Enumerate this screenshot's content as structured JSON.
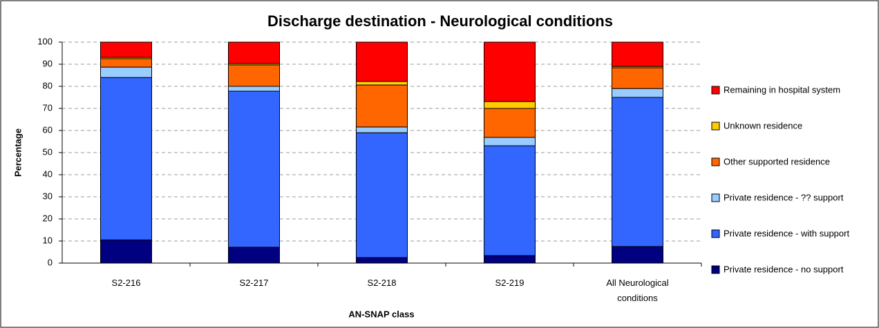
{
  "chart_data": {
    "type": "stacked-bar",
    "title": "Discharge destination - Neurological conditions",
    "x_label": "AN-SNAP class",
    "y_label": "Percentage",
    "categories": [
      "S2-216",
      "S2-217",
      "S2-218",
      "S2-219",
      "All Neurological conditions"
    ],
    "series": [
      {
        "name": "Private residence - no support",
        "color": "#000080",
        "values": [
          10.5,
          7.2,
          2.5,
          3.4,
          7.5
        ]
      },
      {
        "name": "Private residence - with support",
        "color": "#3366ff",
        "values": [
          73.5,
          70.6,
          56.5,
          49.7,
          67.5
        ]
      },
      {
        "name": "Private residence - ?? support",
        "color": "#99ccff",
        "values": [
          4.7,
          2.2,
          2.6,
          3.8,
          4.0
        ]
      },
      {
        "name": "Other supported residence",
        "color": "#ff6600",
        "values": [
          3.8,
          9.7,
          19.0,
          13.1,
          9.4
        ]
      },
      {
        "name": "Unknown residence",
        "color": "#ffcc00",
        "values": [
          0.6,
          0.6,
          1.6,
          3.1,
          0.6
        ]
      },
      {
        "name": "Remaining in hospital system",
        "color": "#ff0000",
        "values": [
          6.9,
          9.7,
          17.8,
          26.9,
          11.0
        ]
      }
    ],
    "ylim": [
      0,
      100
    ],
    "yticks": [
      0,
      10,
      20,
      30,
      40,
      50,
      60,
      70,
      80,
      90,
      100
    ],
    "grid": true,
    "legend": "right"
  }
}
